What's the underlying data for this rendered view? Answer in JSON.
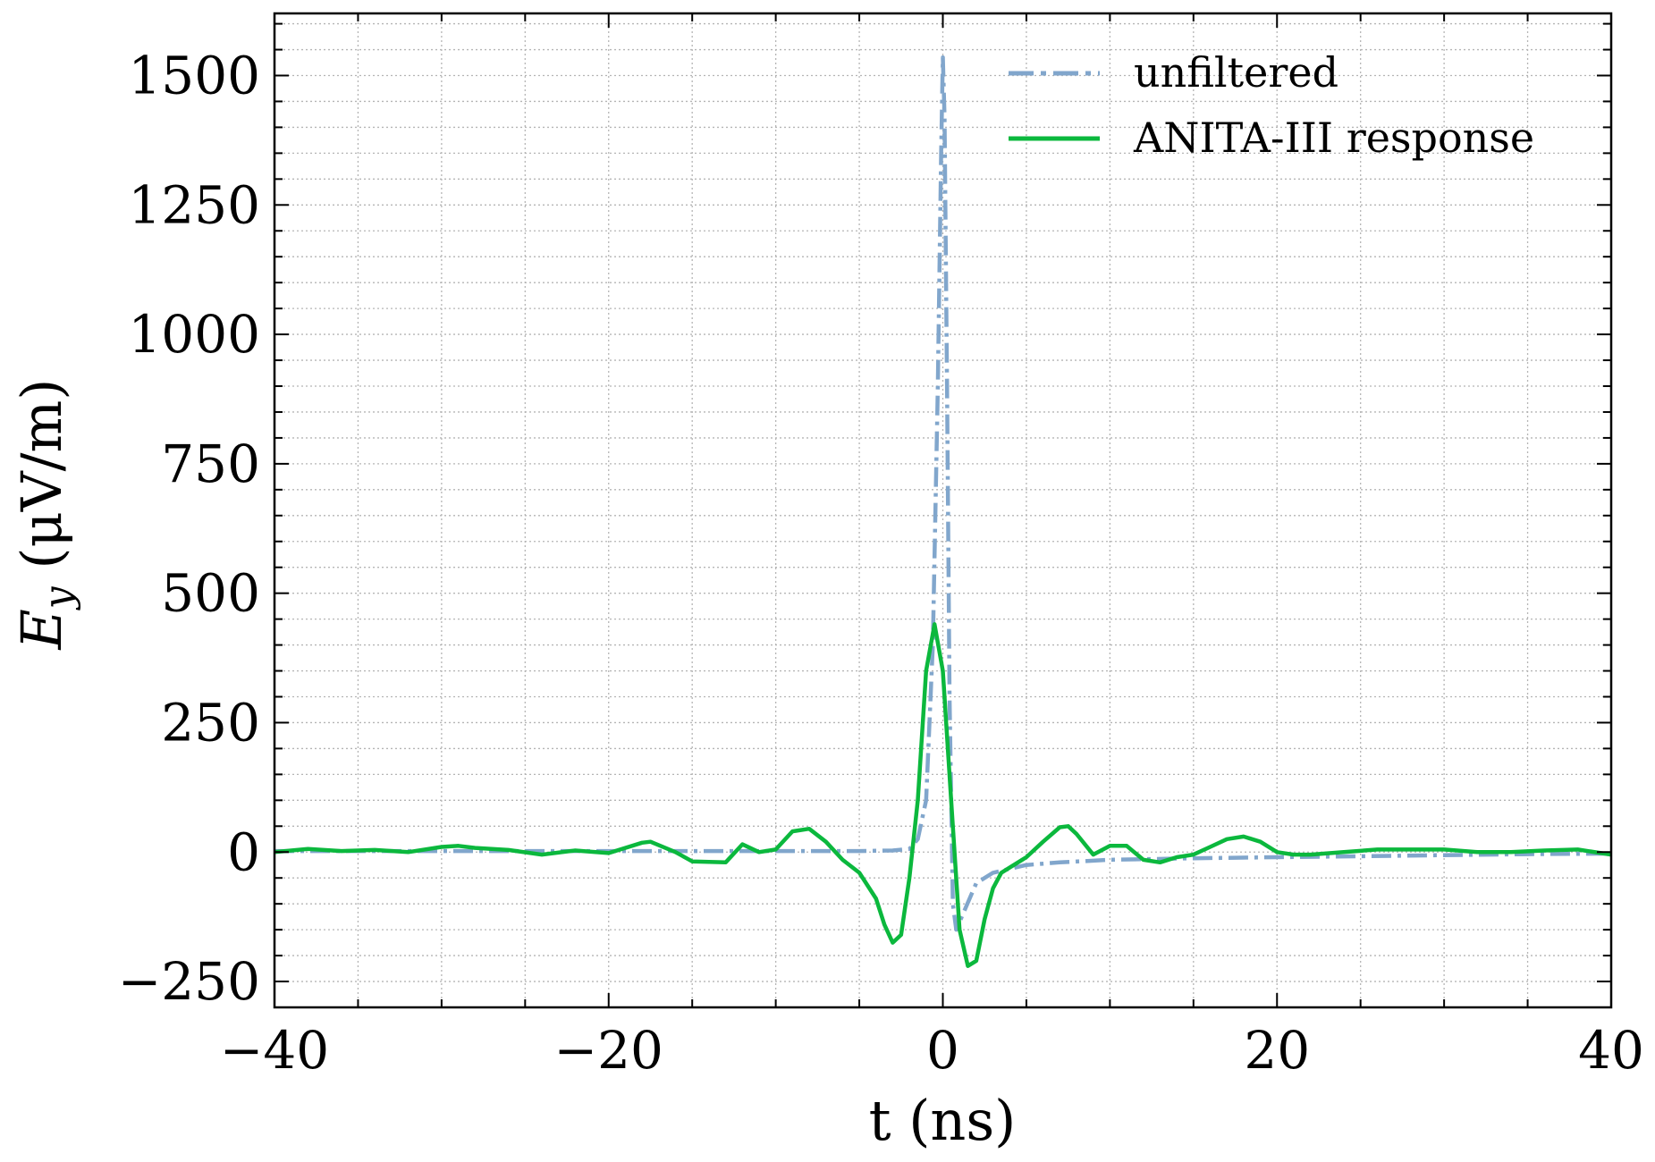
{
  "chart_data": {
    "type": "line",
    "title": "",
    "xlabel": "t (ns)",
    "ylabel_main": "E",
    "ylabel_sub": "y",
    "ylabel_unit": " (μV/m)",
    "xlim": [
      -40,
      40
    ],
    "ylim": [
      -300,
      1620
    ],
    "x_ticks": [
      -40,
      -20,
      0,
      20,
      40
    ],
    "x_tick_labels": [
      "−40",
      "−20",
      "0",
      "20",
      "40"
    ],
    "y_ticks": [
      -250,
      0,
      250,
      500,
      750,
      1000,
      1250,
      1500
    ],
    "y_tick_labels": [
      "−250",
      "0",
      "250",
      "500",
      "750",
      "1000",
      "1250",
      "1500"
    ],
    "grid": true,
    "legend_position": "top-right",
    "series": [
      {
        "name": "unfiltered",
        "color": "#81a6cc",
        "style": "dashdot",
        "x": [
          -40,
          -35,
          -30,
          -25,
          -20,
          -15,
          -10,
          -5,
          -3,
          -2,
          -1.5,
          -1,
          -0.6,
          -0.3,
          -0.1,
          0,
          0.1,
          0.25,
          0.4,
          0.6,
          0.8,
          1.2,
          2,
          3,
          5,
          7,
          10,
          15,
          20,
          25,
          30,
          35,
          40
        ],
        "values": [
          2,
          2,
          2,
          2,
          2,
          2,
          2,
          2,
          3,
          6,
          25,
          100,
          400,
          900,
          1350,
          1535,
          1420,
          900,
          300,
          -100,
          -150,
          -120,
          -60,
          -40,
          -25,
          -20,
          -15,
          -12,
          -10,
          -8,
          -6,
          -4,
          -3
        ]
      },
      {
        "name": "ANITA-III response",
        "color": "#0bb83d",
        "style": "solid",
        "x": [
          -40,
          -38,
          -36,
          -34,
          -32,
          -30,
          -29,
          -28,
          -26,
          -24,
          -22,
          -20,
          -18,
          -17.5,
          -16,
          -15,
          -13,
          -12,
          -11,
          -10,
          -9,
          -8,
          -7,
          -6,
          -5,
          -4,
          -3.5,
          -3,
          -2.5,
          -2,
          -1.5,
          -1,
          -0.5,
          0,
          0.5,
          1,
          1.5,
          2,
          2.5,
          3,
          3.5,
          4,
          5,
          6,
          7,
          7.5,
          8,
          9,
          10,
          11,
          12,
          13,
          14,
          15,
          16,
          17,
          18,
          19,
          20,
          21,
          22,
          24,
          26,
          28,
          30,
          32,
          34,
          36,
          38,
          40
        ],
        "values": [
          0,
          6,
          2,
          4,
          0,
          10,
          12,
          8,
          4,
          -5,
          3,
          -2,
          18,
          20,
          0,
          -18,
          -20,
          15,
          0,
          5,
          40,
          45,
          20,
          -15,
          -40,
          -90,
          -140,
          -175,
          -160,
          -50,
          100,
          350,
          440,
          350,
          100,
          -150,
          -220,
          -210,
          -130,
          -70,
          -40,
          -30,
          -10,
          20,
          48,
          50,
          35,
          -5,
          12,
          12,
          -15,
          -20,
          -10,
          -5,
          10,
          25,
          30,
          20,
          0,
          -5,
          -5,
          0,
          5,
          5,
          5,
          0,
          0,
          3,
          5,
          -5
        ]
      }
    ]
  }
}
